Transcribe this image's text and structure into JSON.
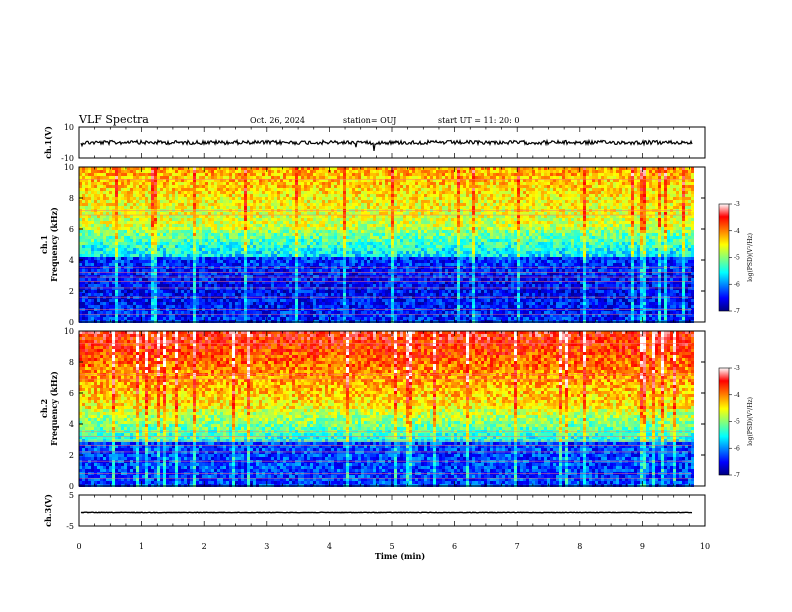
{
  "header": {
    "title": "VLF Spectra",
    "date": "Oct. 26, 2024",
    "station": "station= OUJ",
    "start": "start  UT  =   11: 20: 0"
  },
  "chart_data": [
    {
      "type": "line",
      "panel": "ch1-waveform",
      "ylabel": "ch.1(V)",
      "ylim": [
        -10,
        10
      ],
      "yticks": [
        "10",
        "-10"
      ],
      "xlim": [
        0,
        10
      ]
    },
    {
      "type": "heatmap",
      "panel": "ch1-spectrogram",
      "ylabel_top": "ch.1",
      "ylabel": "Frequency (kHz)",
      "ylim": [
        0,
        10
      ],
      "yticks": [
        "0",
        "2",
        "4",
        "6",
        "8",
        "10"
      ],
      "xlim": [
        0,
        10
      ],
      "colorbar": {
        "label": "log(PSD)(V²/Hz)",
        "range": [
          -7,
          -3
        ],
        "ticks": [
          "-3",
          "-4",
          "-5",
          "-6",
          "-7"
        ]
      }
    },
    {
      "type": "heatmap",
      "panel": "ch2-spectrogram",
      "ylabel_top": "ch.2",
      "ylabel": "Frequency (kHz)",
      "ylim": [
        0,
        10
      ],
      "yticks": [
        "0",
        "2",
        "4",
        "6",
        "8",
        "10"
      ],
      "xlim": [
        0,
        10
      ],
      "colorbar": {
        "label": "log(PSD)(V²/Hz)",
        "range": [
          -7,
          -3
        ],
        "ticks": [
          "-3",
          "-4",
          "-5",
          "-6",
          "-7"
        ]
      }
    },
    {
      "type": "line",
      "panel": "ch3-waveform",
      "ylabel": "ch.3(V)",
      "ylim": [
        -5,
        5
      ],
      "yticks": [
        "5",
        "-5"
      ],
      "xlim": [
        0,
        10
      ],
      "xlabel": "Time  (min)",
      "xticks": [
        "0",
        "1",
        "2",
        "3",
        "4",
        "5",
        "6",
        "7",
        "8",
        "9",
        "10"
      ]
    }
  ]
}
